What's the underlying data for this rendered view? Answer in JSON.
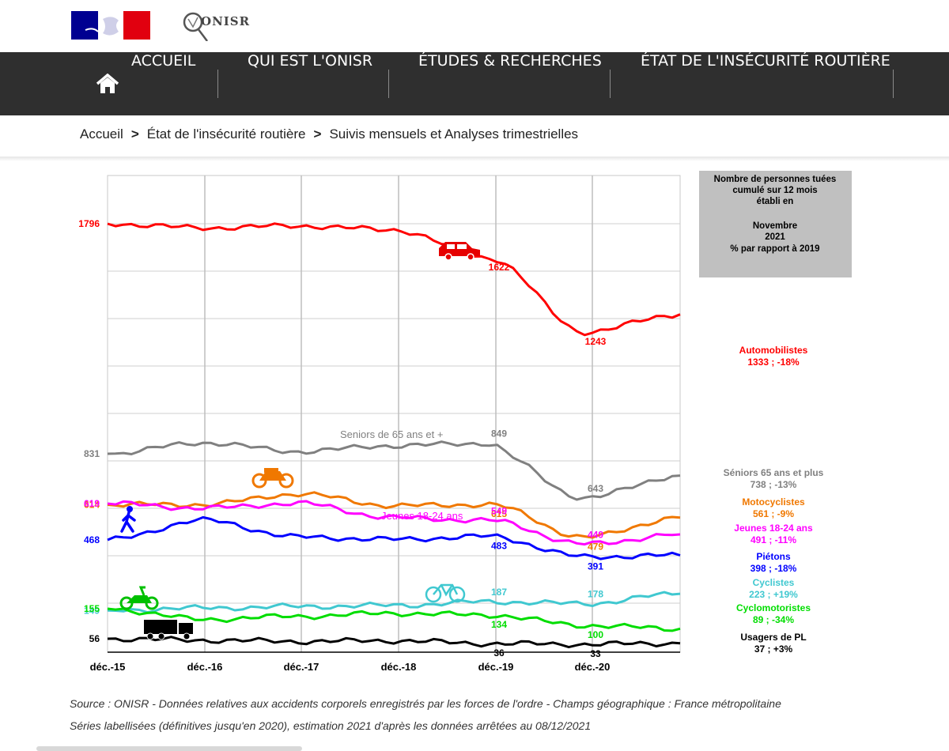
{
  "header": {
    "logo_name": "ONISR"
  },
  "nav": {
    "items": [
      {
        "label": "ACCUEIL"
      },
      {
        "label": "QUI EST L'ONISR"
      },
      {
        "label": "ÉTUDES & RECHERCHES"
      },
      {
        "label": "ÉTAT DE L'INSÉCURITÉ ROUTIÈRE"
      }
    ]
  },
  "breadcrumb": [
    "Accueil",
    "État de l'insécurité routière",
    "Suivis mensuels et Analyses trimestrielles"
  ],
  "chart_data": {
    "type": "line",
    "x": [
      "déc.-15",
      "déc.-16",
      "déc.-17",
      "déc.-18",
      "déc.-19",
      "déc.-20",
      "nov.-21"
    ],
    "xticks": [
      "déc.-15",
      "déc.-16",
      "déc.-17",
      "déc.-18",
      "déc.-19",
      "déc.-20"
    ],
    "grid": true,
    "info_box": [
      "Nombre de personnes tuées",
      "cumulé sur 12 mois",
      "établi en",
      "",
      "Novembre",
      "2021",
      "% par rapport à 2019"
    ],
    "series": [
      {
        "name": "Automobilistes",
        "color": "#ff0000",
        "values": [
          1796,
          1775,
          1785,
          1765,
          1622,
          1243,
          1333
        ],
        "start_label": "1796",
        "point_labels": [
          {
            "i": 4,
            "text": "1622"
          },
          {
            "i": 5,
            "text": "1243"
          }
        ],
        "legend": [
          "Automobilistes",
          "1333 ; -18%"
        ],
        "icon": "car-icon"
      },
      {
        "name": "Séniors 65 ans et plus",
        "color": "#808080",
        "values": [
          831,
          850,
          835,
          845,
          849,
          643,
          738
        ],
        "start_label": "831",
        "point_labels": [
          {
            "i": 4,
            "text": "849"
          },
          {
            "i": 5,
            "text": "643"
          }
        ],
        "legend": [
          "Séniors 65 ans et plus",
          "738 ; -13%"
        ],
        "inline_label": "Seniors de 65 ans et +"
      },
      {
        "name": "Motocyclistes",
        "color": "#f07800",
        "values": [
          614,
          615,
          660,
          610,
          615,
          479,
          561
        ],
        "start_label": "614",
        "point_labels": [
          {
            "i": 4,
            "text": "615"
          },
          {
            "i": 5,
            "text": "479"
          }
        ],
        "legend": [
          "Motocyclistes",
          "561 ; -9%"
        ],
        "icon": "motorcycle-icon"
      },
      {
        "name": "Jeunes 18-24 ans",
        "color": "#ff00ff",
        "values": [
          619,
          600,
          620,
          560,
          549,
          449,
          491
        ],
        "start_label": "619",
        "point_labels": [
          {
            "i": 4,
            "text": "549"
          },
          {
            "i": 5,
            "text": "449"
          }
        ],
        "legend": [
          "Jeunes 18-24 ans",
          "491 ; -11%"
        ],
        "inline_label": "Jeunes 18-24 ans"
      },
      {
        "name": "Piétons",
        "color": "#0000ff",
        "values": [
          468,
          550,
          480,
          470,
          483,
          391,
          398
        ],
        "start_label": "468",
        "point_labels": [
          {
            "i": 4,
            "text": "483"
          },
          {
            "i": 5,
            "text": "391"
          }
        ],
        "legend": [
          "Piétons",
          "398 ; -18%"
        ],
        "icon": "pedestrian-icon"
      },
      {
        "name": "Cyclistes",
        "color": "#40c8d0",
        "values": [
          149,
          158,
          165,
          170,
          187,
          178,
          223
        ],
        "start_label": "149",
        "point_labels": [
          {
            "i": 4,
            "text": "187"
          },
          {
            "i": 5,
            "text": "178"
          }
        ],
        "legend": [
          "Cyclistes",
          "223 ; +19%"
        ],
        "icon": "bicycle-icon"
      },
      {
        "name": "Cyclomotoristes",
        "color": "#00dd00",
        "values": [
          155,
          120,
          130,
          140,
          134,
          100,
          89
        ],
        "start_label": "155",
        "point_labels": [
          {
            "i": 4,
            "text": "134"
          },
          {
            "i": 5,
            "text": "100"
          }
        ],
        "legend": [
          "Cyclomotoristes",
          "89 ; -34%"
        ],
        "icon": "moped-icon"
      },
      {
        "name": "Usagers de PL",
        "color": "#000000",
        "values": [
          56,
          50,
          45,
          48,
          36,
          33,
          37
        ],
        "start_label": "56",
        "point_labels": [
          {
            "i": 4,
            "text": "36"
          },
          {
            "i": 5,
            "text": "33"
          }
        ],
        "legend": [
          "Usagers de PL",
          "37 ; +3%"
        ],
        "icon": "truck-icon"
      }
    ]
  },
  "footer": {
    "source": "Source : ONISR - Données relatives aux accidents corporels enregistrés par les forces de l'ordre - Champs géographique : France métropolitaine",
    "note": "Séries labellisées (définitives jusqu'en 2020), estimation 2021 d'après les données arrêtées au 08/12/2021"
  }
}
